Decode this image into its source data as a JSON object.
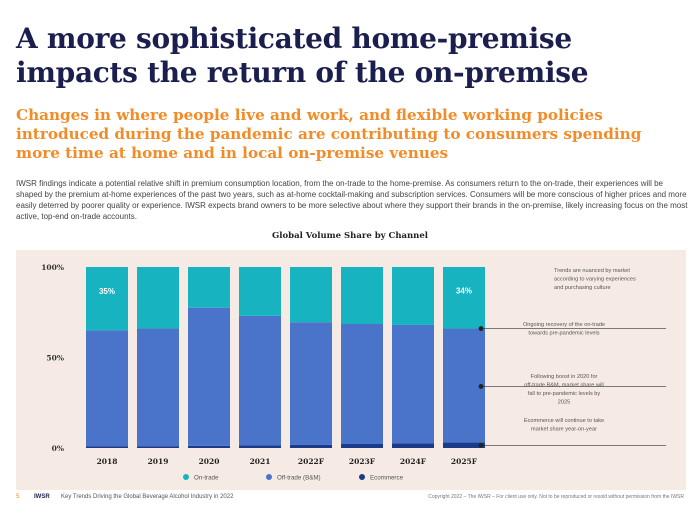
{
  "page": {
    "title": "A more sophisticated home-premise impacts the return of the on-premise",
    "subtitle": "Changes in where people live and work, and flexible working policies introduced during the pandemic are contributing to consumers spending more time at home and in local on-premise venues",
    "body": "IWSR findings indicate a potential relative shift in premium consumption location, from the on-trade to the home-premise. As consumers return to the on-trade, their experiences will be shaped by the premium at-home experiences of the past two years, such as at-home cocktail-making and subscription services. Consumers will be more conscious of higher prices and more easily deterred by poorer quality or experience. IWSR expects brand owners to be more selective about where they support their brands in the on-premise, likely increasing focus on the most active, top-end on-trade accounts."
  },
  "footer": {
    "page_number": "5",
    "brand": "IWSR",
    "report": "Key Trends Driving the Global Beverage Alcohol Industry in 2022",
    "copyright": "Copyright 2022 – The IWSR – For client use only. Not to be reproduced or resold without permission from the IWSR"
  },
  "colors": {
    "on_trade": "#17b3c1",
    "off_trade": "#4a74c9",
    "ecommerce": "#1b3a8a",
    "title": "#1a1f4e",
    "accent": "#f28c28",
    "panel_bg": "#f5ebe4"
  },
  "chart_data": {
    "type": "bar",
    "stacked": true,
    "title": "Global Volume Share by Channel",
    "categories": [
      "2018",
      "2019",
      "2020",
      "2021",
      "2022F",
      "2023F",
      "2024F",
      "2025F"
    ],
    "ylim": [
      0,
      100
    ],
    "yticks": [
      "0%",
      "50%",
      "100%"
    ],
    "series": [
      {
        "name": "Ecommerce",
        "values": [
          1,
          1,
          1.2,
          1.5,
          1.8,
          2.2,
          2.6,
          3
        ]
      },
      {
        "name": "Off-trade (B&M)",
        "values": [
          64,
          65,
          76.3,
          71.5,
          67.7,
          66.3,
          65.4,
          63
        ]
      },
      {
        "name": "On-trade",
        "values": [
          35,
          34,
          22.5,
          27,
          30.5,
          31.5,
          32,
          34
        ]
      }
    ],
    "data_labels": [
      {
        "category": "2018",
        "series": "On-trade",
        "text": "35%"
      },
      {
        "category": "2025F",
        "series": "On-trade",
        "text": "34%"
      }
    ],
    "legend": [
      "On-trade",
      "Off-trade (B&M)",
      "Ecommerce"
    ],
    "legend_position": "bottom",
    "annotations": [
      {
        "text": "Trends are nuanced by market according to varying experiences and purchasing culture",
        "align": "left",
        "target_value": null
      },
      {
        "text": "Ongoing recovery of the on-trade towards pre-pandemic levels",
        "align": "center",
        "target_value": 66
      },
      {
        "text": "Following boost in 2020 for off-trade B&M, market share will fall to pre-pandemic levels by 2025",
        "align": "center",
        "target_value": 34
      },
      {
        "text": "Ecommerce will continue to take market share year-on-year",
        "align": "center",
        "target_value": 1.5
      }
    ]
  }
}
